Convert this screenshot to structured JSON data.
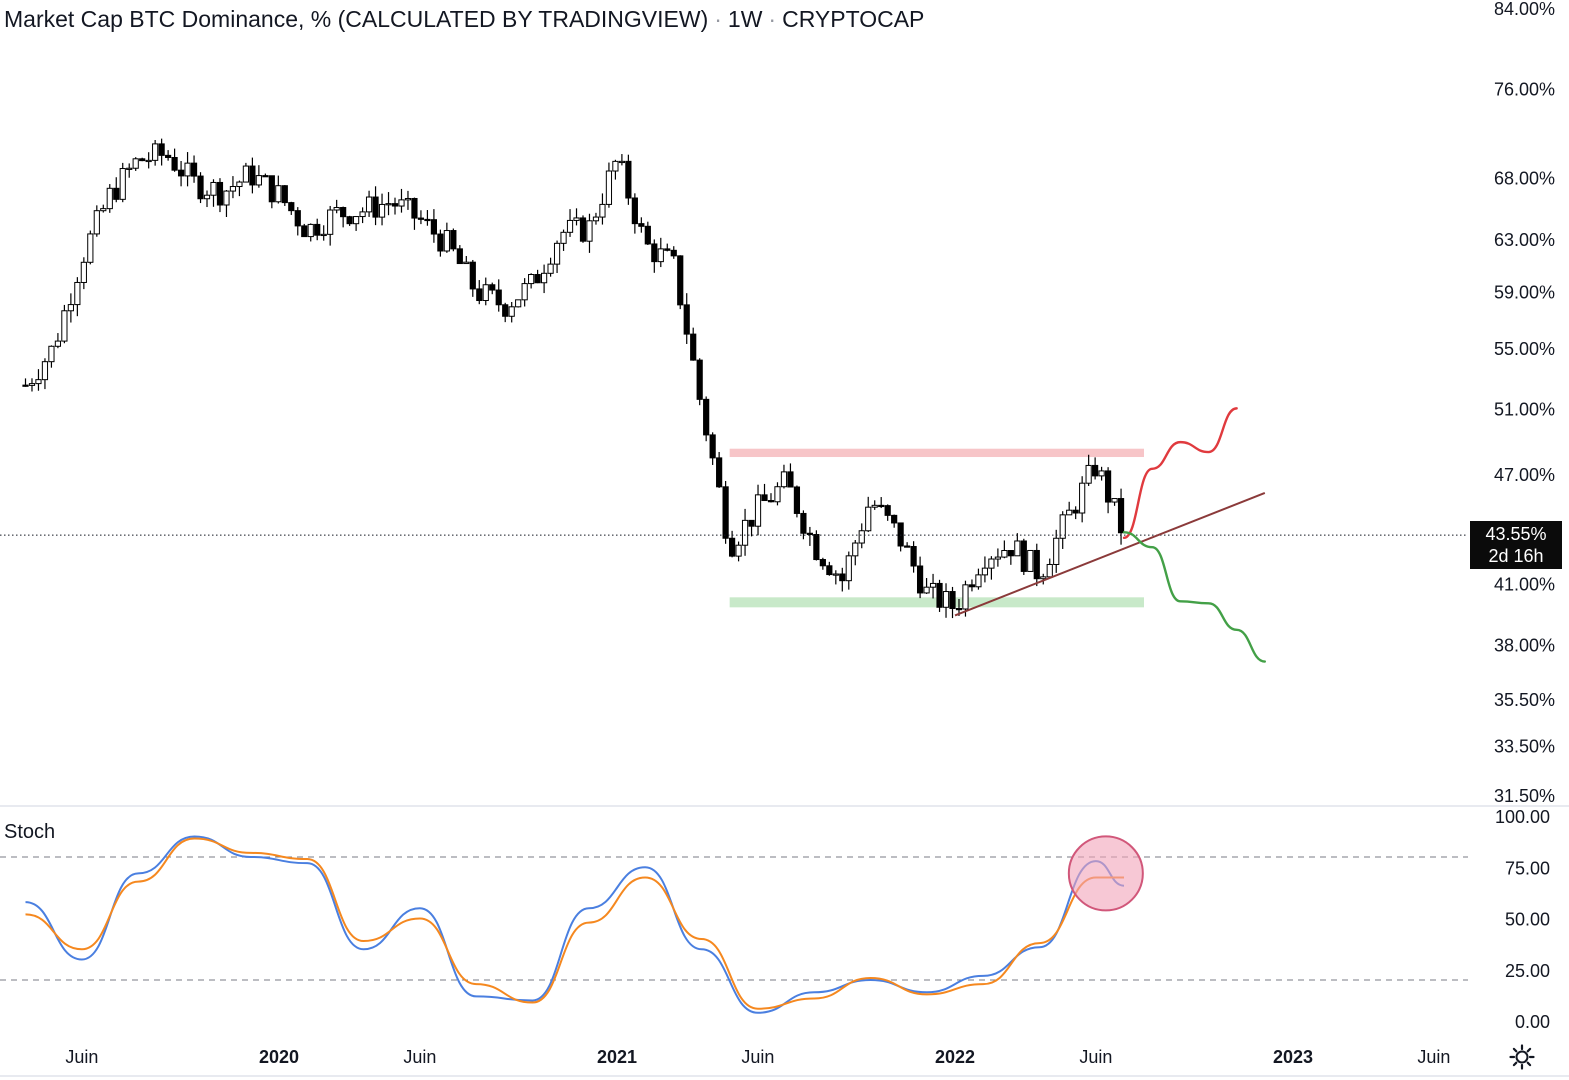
{
  "header": {
    "title": "Market Cap BTC Dominance, % (CALCULATED BY TRADINGVIEW)",
    "separator": "·",
    "interval": "1W",
    "exchange": "CRYPTOCAP"
  },
  "indicator": {
    "label": "Stoch"
  },
  "price_badge": {
    "value": "43.55%",
    "countdown": "2d 16h"
  },
  "icons": {
    "settings": "gear-icon"
  },
  "colors": {
    "candle": "#000000",
    "resistance_zone": "#f7c5c8",
    "support_zone": "#c8e9c9",
    "bull_path": "#e03a3e",
    "bear_path": "#43a047",
    "trendline": "#8b3a3a",
    "stoch_k": "#4a7fe0",
    "stoch_d": "#f5881f",
    "highlight": "#f2a4b9"
  },
  "chart_data": [
    {
      "type": "candlestick",
      "title": "Market Cap BTC Dominance, % (CALCULATED BY TRADINGVIEW)",
      "interval": "1W",
      "y_scale": "log",
      "y_ticks": [
        "84.00%",
        "76.00%",
        "68.00%",
        "63.00%",
        "59.00%",
        "55.00%",
        "51.00%",
        "47.00%",
        "41.00%",
        "38.00%",
        "35.50%",
        "33.50%",
        "31.50%"
      ],
      "y_tick_values": [
        84,
        76,
        68,
        63,
        59,
        55,
        51,
        47,
        41,
        38,
        35.5,
        33.5,
        31.5
      ],
      "x_ticks": [
        "Juin",
        "2020",
        "Juin",
        "2021",
        "Juin",
        "2022",
        "Juin",
        "2023",
        "Juin"
      ],
      "x_tick_dates": [
        "2019-06",
        "2020-01",
        "2020-06",
        "2021-01",
        "2021-06",
        "2022-01",
        "2022-06",
        "2023-01",
        "2023-06"
      ],
      "last_price": 43.55,
      "close_path": [
        [
          "2019-04",
          52.5
        ],
        [
          "2019-05",
          55.0
        ],
        [
          "2019-06",
          61.5
        ],
        [
          "2019-07",
          66.5
        ],
        [
          "2019-08",
          69.5
        ],
        [
          "2019-09",
          70.0
        ],
        [
          "2019-10",
          67.5
        ],
        [
          "2019-11",
          66.8
        ],
        [
          "2019-12",
          68.3
        ],
        [
          "2020-01",
          66.5
        ],
        [
          "2020-02",
          63.7
        ],
        [
          "2020-03",
          65.0
        ],
        [
          "2020-04",
          65.3
        ],
        [
          "2020-05",
          66.0
        ],
        [
          "2020-06",
          64.5
        ],
        [
          "2020-07",
          62.5
        ],
        [
          "2020-08",
          59.0
        ],
        [
          "2020-09",
          58.0
        ],
        [
          "2020-10",
          59.5
        ],
        [
          "2020-11",
          63.5
        ],
        [
          "2020-12",
          63.8
        ],
        [
          "2021-01",
          69.5
        ],
        [
          "2021-02",
          62.5
        ],
        [
          "2021-03",
          61.0
        ],
        [
          "2021-04",
          51.0
        ],
        [
          "2021-05",
          43.0
        ],
        [
          "2021-06",
          45.0
        ],
        [
          "2021-07",
          46.5
        ],
        [
          "2021-08",
          43.0
        ],
        [
          "2021-09",
          41.2
        ],
        [
          "2021-10",
          45.5
        ],
        [
          "2021-11",
          43.5
        ],
        [
          "2021-12",
          40.5
        ],
        [
          "2022-01",
          39.8
        ],
        [
          "2022-02",
          42.5
        ],
        [
          "2022-03",
          43.0
        ],
        [
          "2022-04",
          41.5
        ],
        [
          "2022-05",
          44.5
        ],
        [
          "2022-06",
          47.5
        ],
        [
          "2022-07",
          43.55
        ]
      ],
      "zones": [
        {
          "name": "resistance",
          "from": "2021-05",
          "to": "2022-07",
          "low": 48.0,
          "high": 48.5
        },
        {
          "name": "support",
          "from": "2021-05",
          "to": "2022-07",
          "low": 39.8,
          "high": 40.3
        }
      ],
      "trendline": {
        "from": [
          "2022-01",
          39.4
        ],
        "to": [
          "2022-12",
          45.9
        ]
      },
      "projections": [
        {
          "name": "bullish",
          "path": [
            [
              "2022-07",
              43.4
            ],
            [
              "2022-08",
              47.3
            ],
            [
              "2022-09",
              48.9
            ],
            [
              "2022-10",
              48.3
            ],
            [
              "2022-11",
              51.0
            ]
          ]
        },
        {
          "name": "bearish",
          "path": [
            [
              "2022-07",
              43.7
            ],
            [
              "2022-08",
              42.9
            ],
            [
              "2022-09",
              40.1
            ],
            [
              "2022-10",
              40.0
            ],
            [
              "2022-11",
              38.7
            ],
            [
              "2022-12",
              37.2
            ]
          ]
        }
      ]
    },
    {
      "type": "line",
      "title": "Stoch",
      "y_ticks": [
        "100.00",
        "75.00",
        "50.00",
        "25.00",
        "0.00"
      ],
      "y_tick_values": [
        100,
        75,
        50,
        25,
        0
      ],
      "ylim": [
        0,
        100
      ],
      "bands": [
        80,
        20
      ],
      "x": [
        "2019-04",
        "2019-06",
        "2019-08",
        "2019-10",
        "2019-12",
        "2020-02",
        "2020-04",
        "2020-06",
        "2020-08",
        "2020-10",
        "2020-12",
        "2021-02",
        "2021-04",
        "2021-06",
        "2021-08",
        "2021-10",
        "2021-12",
        "2022-02",
        "2022-04",
        "2022-06",
        "2022-07"
      ],
      "series": [
        {
          "name": "%K",
          "values": [
            58,
            30,
            72,
            90,
            80,
            77,
            35,
            55,
            12,
            10,
            55,
            75,
            35,
            4,
            14,
            20,
            14,
            22,
            36,
            78,
            66
          ]
        },
        {
          "name": "%D",
          "values": [
            52,
            35,
            68,
            89,
            82,
            79,
            39,
            50,
            18,
            9,
            48,
            70,
            40,
            6,
            11,
            21,
            13,
            18,
            38,
            70,
            70
          ]
        }
      ],
      "highlight": {
        "x": "2022-06",
        "y": 72
      }
    }
  ]
}
